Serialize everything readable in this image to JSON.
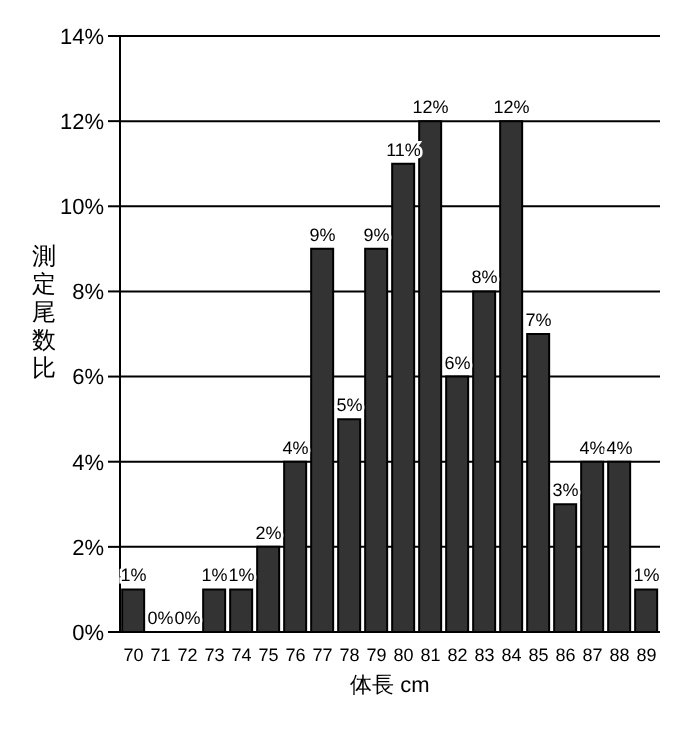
{
  "chart_data": {
    "type": "bar",
    "xlabel": "体長 cm",
    "ylabel": "測定尾数比",
    "categories": [
      "70",
      "71",
      "72",
      "73",
      "74",
      "75",
      "76",
      "77",
      "78",
      "79",
      "80",
      "81",
      "82",
      "83",
      "84",
      "85",
      "86",
      "87",
      "88",
      "89"
    ],
    "values": [
      1,
      0,
      0,
      1,
      1,
      2,
      4,
      9,
      5,
      9,
      11,
      12,
      6,
      8,
      12,
      7,
      3,
      4,
      4,
      1
    ],
    "value_labels": [
      "1%",
      "0%",
      "0%",
      "1%",
      "1%",
      "2%",
      "4%",
      "9%",
      "5%",
      "9%",
      "11%",
      "12%",
      "6%",
      "8%",
      "12%",
      "7%",
      "3%",
      "4%",
      "4%",
      "1%"
    ],
    "color": "#333333",
    "ylim": [
      0,
      14
    ],
    "yticks": [
      {
        "value": 0,
        "label": "0%"
      },
      {
        "value": 2,
        "label": "2%"
      },
      {
        "value": 4,
        "label": "4%"
      },
      {
        "value": 6,
        "label": "6%"
      },
      {
        "value": 8,
        "label": "8%"
      },
      {
        "value": 10,
        "label": "10%"
      },
      {
        "value": 12,
        "label": "12%"
      },
      {
        "value": 14,
        "label": "14%"
      }
    ],
    "grid": "y"
  }
}
